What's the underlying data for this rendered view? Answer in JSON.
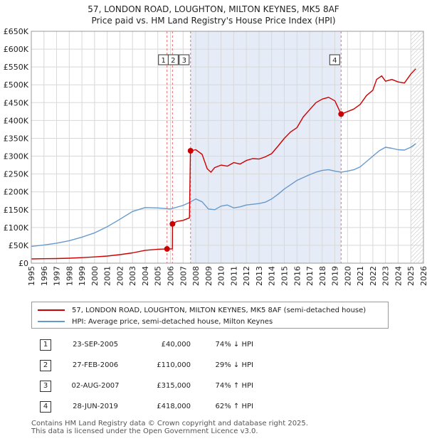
{
  "title_line1": "57, LONDON ROAD, LOUGHTON, MILTON KEYNES, MK5 8AF",
  "title_line2": "Price paid vs. HM Land Registry's House Price Index (HPI)",
  "chart_data": {
    "type": "line",
    "ylim": [
      0,
      650000
    ],
    "xlim": [
      1995,
      2026
    ],
    "y_ticks": [
      0,
      50000,
      100000,
      150000,
      200000,
      250000,
      300000,
      350000,
      400000,
      450000,
      500000,
      550000,
      600000,
      650000
    ],
    "y_tick_labels": [
      "£0",
      "£50K",
      "£100K",
      "£150K",
      "£200K",
      "£250K",
      "£300K",
      "£350K",
      "£400K",
      "£450K",
      "£500K",
      "£550K",
      "£600K",
      "£650K"
    ],
    "x_ticks": [
      1995,
      1996,
      1997,
      1998,
      1999,
      2000,
      2001,
      2002,
      2003,
      2004,
      2005,
      2006,
      2007,
      2008,
      2009,
      2010,
      2011,
      2012,
      2013,
      2014,
      2015,
      2016,
      2017,
      2018,
      2019,
      2020,
      2021,
      2022,
      2023,
      2024,
      2025,
      2026
    ],
    "x_tick_labels": [
      "1995",
      "1996",
      "1997",
      "1998",
      "1999",
      "2000",
      "2001",
      "2002",
      "2003",
      "2004",
      "2005",
      "2006",
      "2007",
      "2008",
      "2009",
      "2010",
      "2011",
      "2012",
      "2013",
      "2014",
      "2015",
      "2016",
      "2017",
      "2018",
      "2019",
      "2020",
      "2021",
      "2022",
      "2023",
      "2024",
      "2025",
      "2026"
    ],
    "grid": true,
    "shaded_range": [
      2007.58,
      2019.49
    ],
    "hatched_from": 2025.0,
    "series": [
      {
        "name": "57, LONDON ROAD, LOUGHTON, MILTON KEYNES, MK5 8AF (semi-detached house)",
        "color": "#cc0000",
        "x": [
          1995.0,
          1996.0,
          1997.0,
          1998.0,
          1999.0,
          2000.0,
          2001.0,
          2002.0,
          2003.0,
          2004.0,
          2005.0,
          2005.72,
          2005.73,
          2006.15,
          2006.16,
          2006.5,
          2007.0,
          2007.5,
          2007.58,
          2007.59,
          2008.0,
          2008.5,
          2008.9,
          2009.2,
          2009.5,
          2010.0,
          2010.5,
          2011.0,
          2011.5,
          2012.0,
          2012.5,
          2013.0,
          2013.5,
          2014.0,
          2014.5,
          2015.0,
          2015.5,
          2016.0,
          2016.5,
          2017.0,
          2017.5,
          2018.0,
          2018.5,
          2019.0,
          2019.49,
          2019.5,
          2020.0,
          2020.5,
          2021.0,
          2021.5,
          2022.0,
          2022.3,
          2022.7,
          2023.0,
          2023.5,
          2024.0,
          2024.5,
          2025.0,
          2025.4
        ],
        "values": [
          12000,
          12500,
          13000,
          14000,
          15500,
          17500,
          20000,
          24000,
          29000,
          36000,
          39000,
          40000,
          40000,
          40000,
          110000,
          117000,
          120000,
          127000,
          315000,
          315000,
          318000,
          305000,
          265000,
          255000,
          268000,
          275000,
          272000,
          282000,
          278000,
          288000,
          293000,
          292000,
          298000,
          307000,
          328000,
          350000,
          368000,
          380000,
          410000,
          430000,
          450000,
          460000,
          465000,
          455000,
          418000,
          418000,
          425000,
          432000,
          445000,
          470000,
          485000,
          515000,
          525000,
          510000,
          515000,
          508000,
          505000,
          530000,
          545000
        ]
      },
      {
        "name": "HPI: Average price, semi-detached house, Milton Keynes",
        "color": "#6699cc",
        "x": [
          1995.0,
          1996.0,
          1997.0,
          1998.0,
          1999.0,
          2000.0,
          2001.0,
          2002.0,
          2003.0,
          2004.0,
          2005.0,
          2006.0,
          2007.0,
          2007.5,
          2008.0,
          2008.5,
          2009.0,
          2009.5,
          2010.0,
          2010.5,
          2011.0,
          2011.5,
          2012.0,
          2012.5,
          2013.0,
          2013.5,
          2014.0,
          2014.5,
          2015.0,
          2015.5,
          2016.0,
          2016.5,
          2017.0,
          2017.5,
          2018.0,
          2018.5,
          2019.0,
          2019.5,
          2020.0,
          2020.5,
          2021.0,
          2021.5,
          2022.0,
          2022.5,
          2023.0,
          2023.5,
          2024.0,
          2024.5,
          2025.0,
          2025.4
        ],
        "values": [
          47000,
          51000,
          56000,
          63000,
          73000,
          85000,
          102000,
          123000,
          145000,
          156000,
          155000,
          152000,
          162000,
          170000,
          180000,
          172000,
          152000,
          150000,
          160000,
          163000,
          155000,
          158000,
          163000,
          165000,
          167000,
          171000,
          180000,
          193000,
          208000,
          220000,
          232000,
          240000,
          248000,
          255000,
          260000,
          262000,
          258000,
          255000,
          258000,
          262000,
          270000,
          285000,
          300000,
          315000,
          325000,
          322000,
          318000,
          317000,
          325000,
          335000
        ]
      }
    ],
    "markers": [
      {
        "label": "1",
        "x": 2005.73,
        "y": 40000
      },
      {
        "label": "2",
        "x": 2006.16,
        "y": 110000
      },
      {
        "label": "3",
        "x": 2007.59,
        "y": 315000
      },
      {
        "label": "4",
        "x": 2019.49,
        "y": 418000
      }
    ]
  },
  "legend": {
    "property_label": "57, LONDON ROAD, LOUGHTON, MILTON KEYNES, MK5 8AF (semi-detached house)",
    "hpi_label": "HPI: Average price, semi-detached house, Milton Keynes"
  },
  "transactions": [
    {
      "num": "1",
      "date": "23-SEP-2005",
      "price": "£40,000",
      "hpi": "74% ↓ HPI"
    },
    {
      "num": "2",
      "date": "27-FEB-2006",
      "price": "£110,000",
      "hpi": "29% ↓ HPI"
    },
    {
      "num": "3",
      "date": "02-AUG-2007",
      "price": "£315,000",
      "hpi": "74% ↑ HPI"
    },
    {
      "num": "4",
      "date": "28-JUN-2019",
      "price": "£418,000",
      "hpi": "62% ↑ HPI"
    }
  ],
  "footer_line1": "Contains HM Land Registry data © Crown copyright and database right 2025.",
  "footer_line2": "This data is licensed under the Open Government Licence v3.0."
}
